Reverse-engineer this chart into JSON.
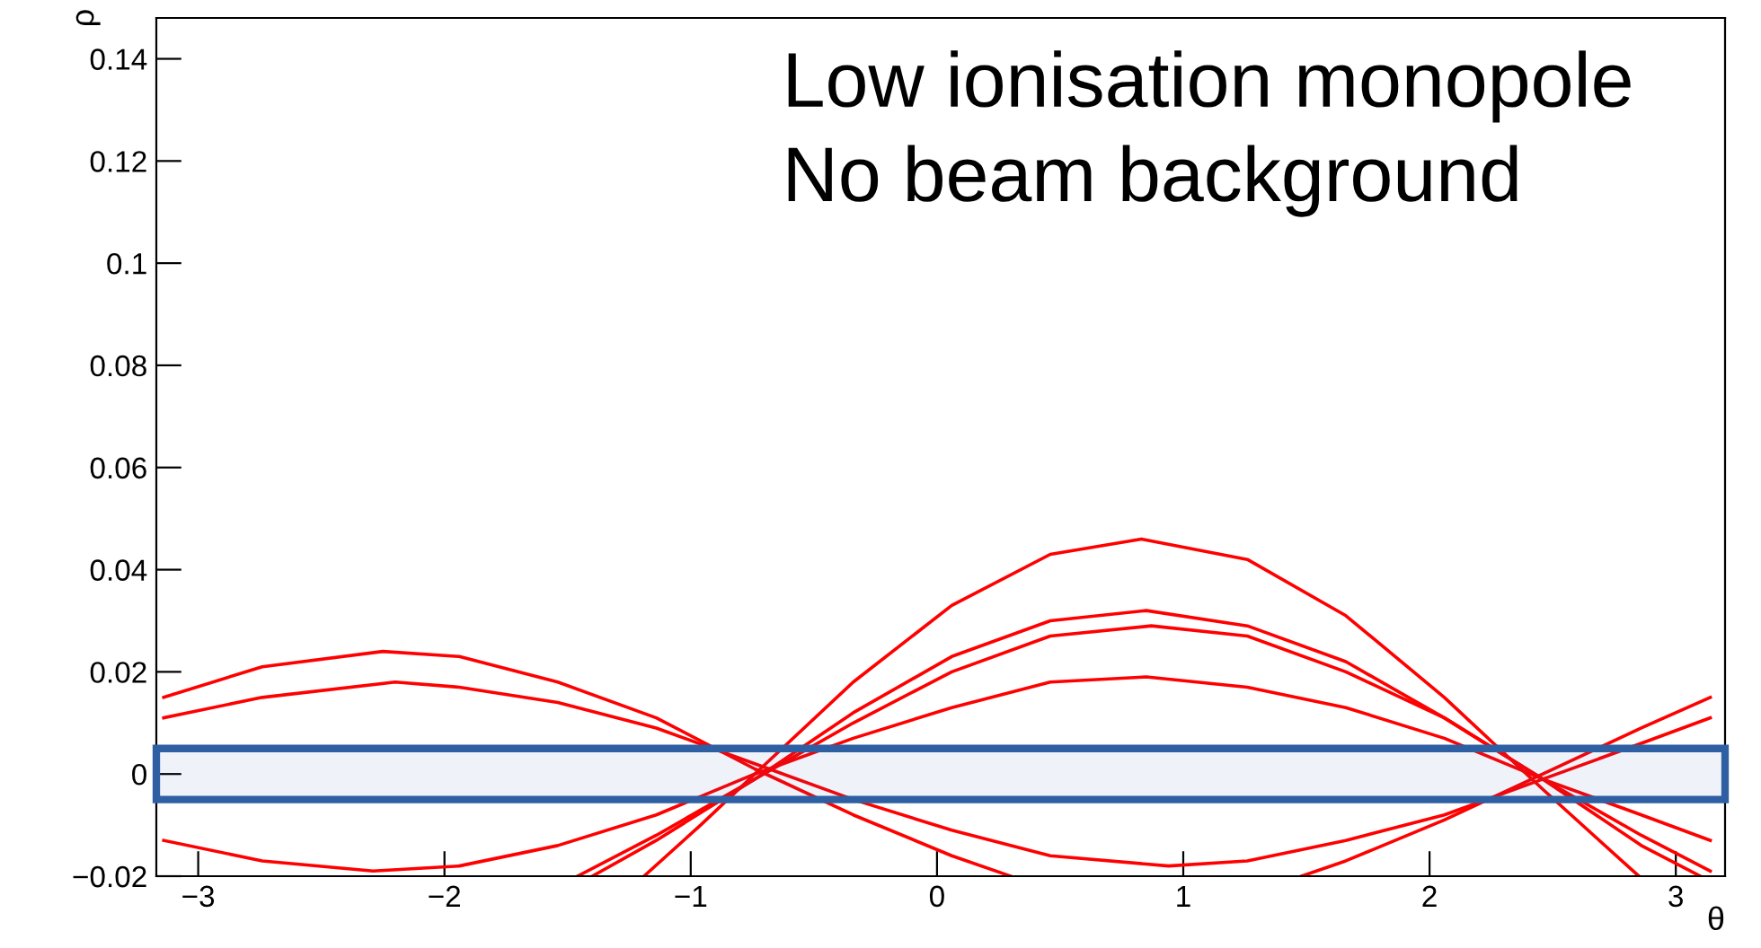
{
  "chart_data": {
    "type": "line",
    "xlabel": "θ",
    "ylabel": "ρ",
    "annotations": [
      "Low ionisation monopole",
      "No beam background"
    ],
    "xlim": [
      -3.17,
      3.2
    ],
    "ylim": [
      -0.02,
      0.148
    ],
    "xticks": [
      {
        "value": -3,
        "label": "−3"
      },
      {
        "value": -2,
        "label": "−2"
      },
      {
        "value": -1,
        "label": "−1"
      },
      0,
      1,
      2,
      3
    ],
    "yticks": [
      {
        "value": -0.02,
        "label": "−0.02"
      },
      0,
      0.02,
      0.04,
      0.06,
      0.08,
      0.1,
      0.12,
      0.14
    ],
    "grid": false,
    "marker": "none",
    "line_style": "solid",
    "series": [
      {
        "color": "#ff0000",
        "x": [
          -1.19,
          -0.96,
          -0.74,
          -0.34,
          0.06,
          0.46,
          0.83,
          1.26,
          1.66,
          2.06,
          2.46,
          2.85
        ],
        "values": [
          -0.02,
          -0.01,
          0.0,
          0.018,
          0.033,
          0.043,
          0.046,
          0.042,
          0.031,
          0.015,
          -0.003,
          -0.02
        ]
      },
      {
        "color": "#ff0000",
        "x": [
          -1.4,
          -1.14,
          -0.74,
          -0.34,
          0.06,
          0.46,
          0.85,
          1.26,
          1.66,
          2.06,
          2.46,
          2.86,
          3.1
        ],
        "values": [
          -0.02,
          -0.013,
          -0.001,
          0.012,
          0.023,
          0.03,
          0.032,
          0.029,
          0.022,
          0.011,
          -0.001,
          -0.014,
          -0.02
        ]
      },
      {
        "color": "#ff0000",
        "x": [
          -1.46,
          -1.14,
          -0.74,
          -0.34,
          0.06,
          0.46,
          0.87,
          1.26,
          1.66,
          2.06,
          2.46,
          2.86,
          3.14
        ],
        "values": [
          -0.02,
          -0.012,
          -0.001,
          0.01,
          0.02,
          0.027,
          0.029,
          0.027,
          0.02,
          0.011,
          -0.001,
          -0.012,
          -0.019
        ]
      },
      {
        "color": "#ff0000",
        "x": [
          -3.14,
          -2.74,
          -2.29,
          -1.94,
          -1.54,
          -1.14,
          -0.74,
          -0.34,
          0.06,
          0.46,
          0.85,
          1.26,
          1.66,
          2.06,
          2.46,
          2.86,
          3.14
        ],
        "values": [
          -0.013,
          -0.017,
          -0.019,
          -0.018,
          -0.014,
          -0.008,
          0.0,
          0.007,
          0.013,
          0.018,
          0.019,
          0.017,
          0.013,
          0.007,
          -0.001,
          -0.008,
          -0.013
        ]
      },
      {
        "color": "#ff0000",
        "x": [
          -3.14,
          -2.74,
          -2.25,
          -1.94,
          -1.54,
          -1.14,
          -0.74,
          -0.34,
          0.06,
          0.3
        ],
        "values": [
          0.015,
          0.021,
          0.024,
          0.023,
          0.018,
          0.011,
          0.001,
          -0.008,
          -0.016,
          -0.02
        ]
      },
      {
        "color": "#ff0000",
        "x": [
          1.48,
          1.66,
          2.06,
          2.46,
          2.86,
          3.14
        ],
        "values": [
          -0.02,
          -0.017,
          -0.009,
          0.0,
          0.009,
          0.015
        ]
      },
      {
        "color": "#ff0000",
        "x": [
          -3.14,
          -2.74,
          -2.2,
          -1.94,
          -1.54,
          -1.14,
          -0.74,
          -0.34,
          0.06,
          0.46,
          0.94,
          1.26,
          1.66,
          2.06,
          2.46,
          2.86,
          3.14
        ],
        "values": [
          0.011,
          0.015,
          0.018,
          0.017,
          0.014,
          0.009,
          0.002,
          -0.005,
          -0.011,
          -0.016,
          -0.018,
          -0.017,
          -0.013,
          -0.008,
          -0.001,
          0.006,
          0.011
        ]
      }
    ],
    "bands": [
      {
        "axis": "y",
        "from": -0.005,
        "to": 0.005,
        "color": "#2e5fa3"
      }
    ]
  }
}
